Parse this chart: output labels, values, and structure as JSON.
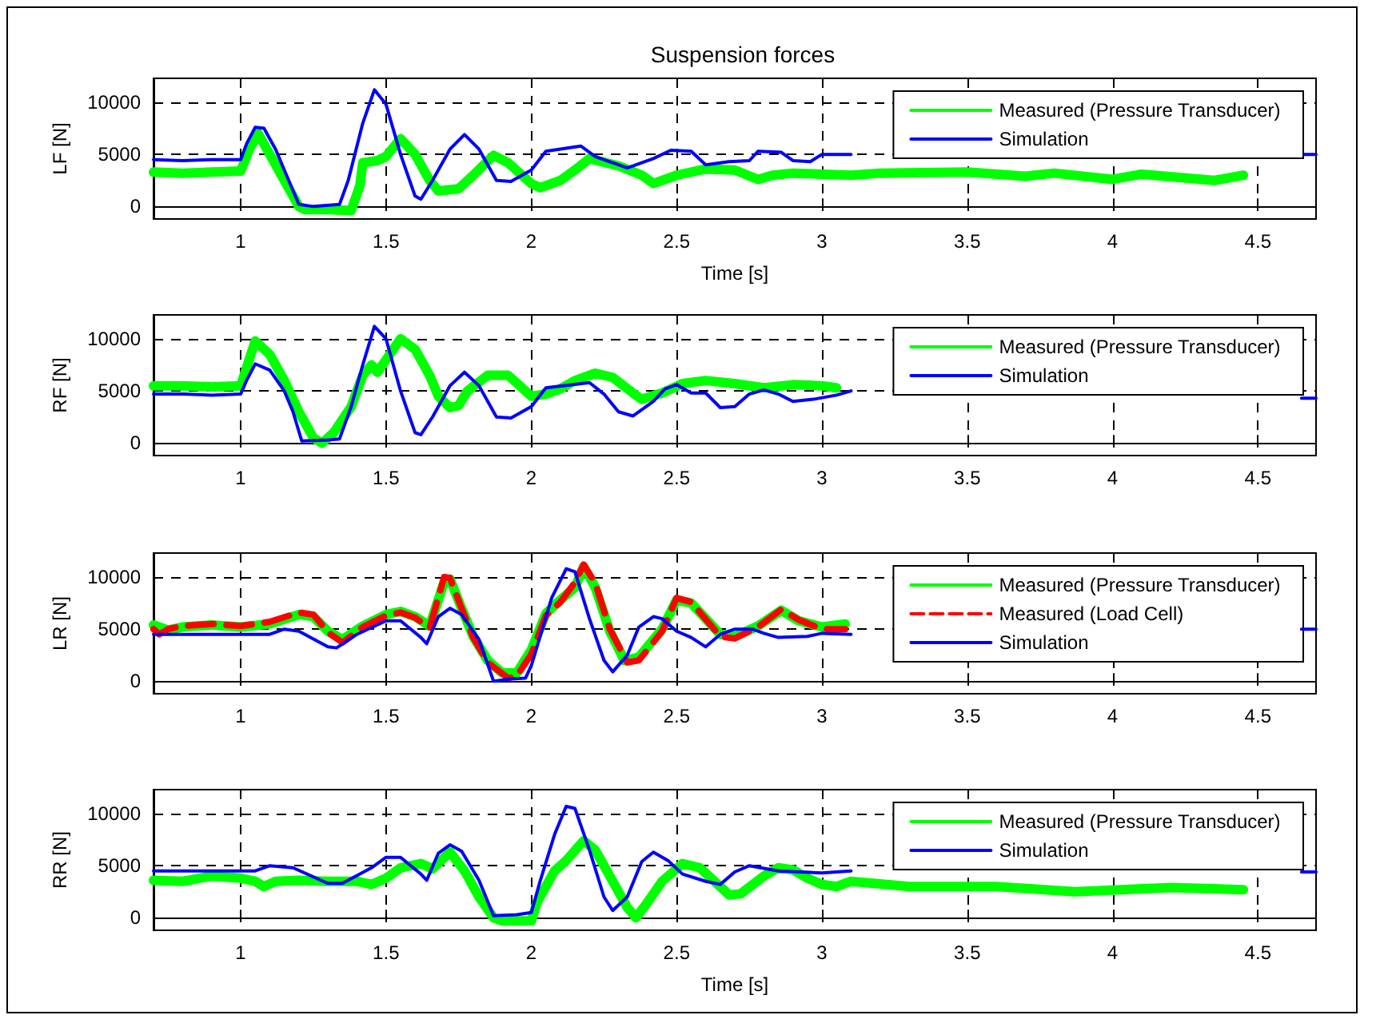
{
  "chart_data": [
    {
      "type": "line",
      "title": "Suspension forces",
      "xlabel": "Time [s]",
      "ylabel": "LF [N]",
      "xlim": [
        0.7,
        4.7
      ],
      "xticks": [
        1,
        1.5,
        2,
        2.5,
        3,
        3.5,
        4,
        4.5
      ],
      "ylim": [
        -1200,
        12300
      ],
      "yticks": [
        0,
        5000,
        10000
      ],
      "grid": true,
      "legend": "top right",
      "marker": "none",
      "series": [
        {
          "name": "Measured (Pressure Transducer)",
          "color": "#00ff00",
          "line_style": "solid",
          "x": [
            0.7,
            0.8,
            0.9,
            1.0,
            1.03,
            1.06,
            1.1,
            1.15,
            1.2,
            1.22,
            1.3,
            1.38,
            1.41,
            1.42,
            1.47,
            1.5,
            1.55,
            1.6,
            1.65,
            1.68,
            1.75,
            1.8,
            1.87,
            1.92,
            2.0,
            2.03,
            2.1,
            2.15,
            2.2,
            2.3,
            2.38,
            2.42,
            2.5,
            2.6,
            2.7,
            2.78,
            2.83,
            2.9,
            3.0,
            3.1,
            3.2,
            3.5,
            3.7,
            3.8,
            4.0,
            4.1,
            4.35,
            4.45
          ],
          "values": [
            3300,
            3200,
            3300,
            3400,
            5500,
            7000,
            5000,
            2500,
            0,
            -300,
            -300,
            -400,
            2000,
            4200,
            4400,
            4800,
            6500,
            5000,
            2500,
            1500,
            1700,
            3000,
            4900,
            4200,
            2200,
            1800,
            2500,
            3500,
            4600,
            3900,
            3000,
            2200,
            3000,
            3600,
            3500,
            2600,
            3000,
            3200,
            3100,
            3000,
            3200,
            3300,
            2900,
            3200,
            2600,
            3100,
            2500,
            3000
          ]
        },
        {
          "name": "Simulation",
          "color": "#0000ff",
          "line_style": "solid",
          "x": [
            0.7,
            0.8,
            0.9,
            1.0,
            1.02,
            1.05,
            1.08,
            1.12,
            1.2,
            1.25,
            1.34,
            1.37,
            1.42,
            1.46,
            1.5,
            1.55,
            1.6,
            1.62,
            1.66,
            1.72,
            1.77,
            1.82,
            1.88,
            1.93,
            2.0,
            2.05,
            2.17,
            2.22,
            2.3,
            2.33,
            2.42,
            2.48,
            2.55,
            2.6,
            2.68,
            2.75,
            2.78,
            2.86,
            2.9,
            2.96,
            3.0,
            3.05,
            3.1,
            3.11,
            4.65,
            4.7
          ],
          "values": [
            4500,
            4400,
            4500,
            4500,
            6000,
            7600,
            7500,
            5500,
            200,
            0,
            200,
            2500,
            8000,
            11200,
            9800,
            5000,
            1000,
            700,
            2500,
            5500,
            6900,
            5500,
            2500,
            2400,
            3500,
            5300,
            5800,
            4800,
            4000,
            3700,
            4600,
            5400,
            5300,
            4000,
            4300,
            4400,
            5300,
            5200,
            4400,
            4300,
            5000,
            5000,
            5000,
            null,
            5000,
            5000
          ]
        }
      ]
    },
    {
      "type": "line",
      "ylabel": "RF [N]",
      "xlim": [
        0.7,
        4.7
      ],
      "xticks": [
        1,
        1.5,
        2,
        2.5,
        3,
        3.5,
        4,
        4.5
      ],
      "ylim": [
        -1200,
        12300
      ],
      "yticks": [
        0,
        5000,
        10000
      ],
      "grid": true,
      "legend": "top right",
      "marker": "none",
      "series": [
        {
          "name": "Measured (Pressure Transducer)",
          "color": "#00ff00",
          "line_style": "solid",
          "x": [
            0.7,
            0.8,
            0.9,
            1.0,
            1.05,
            1.1,
            1.15,
            1.2,
            1.25,
            1.28,
            1.32,
            1.38,
            1.42,
            1.45,
            1.47,
            1.5,
            1.55,
            1.6,
            1.65,
            1.68,
            1.72,
            1.75,
            1.78,
            1.85,
            1.92,
            1.96,
            2.0,
            2.05,
            2.1,
            2.15,
            2.22,
            2.28,
            2.35,
            2.38,
            2.45,
            2.52,
            2.6,
            2.7,
            2.8,
            2.9,
            3.0,
            3.05
          ],
          "values": [
            5500,
            5500,
            5400,
            5500,
            9800,
            8500,
            6000,
            3000,
            500,
            0,
            1000,
            3500,
            6500,
            7500,
            6800,
            8000,
            10000,
            9000,
            6500,
            4500,
            3400,
            3600,
            5000,
            6500,
            6500,
            5500,
            4500,
            4700,
            5200,
            6000,
            6700,
            6300,
            4800,
            4200,
            4800,
            5700,
            6000,
            5700,
            5300,
            5600,
            5500,
            5300
          ]
        },
        {
          "name": "Simulation",
          "color": "#0000ff",
          "line_style": "solid",
          "x": [
            0.7,
            0.8,
            0.9,
            1.0,
            1.02,
            1.05,
            1.1,
            1.15,
            1.18,
            1.21,
            1.3,
            1.34,
            1.38,
            1.42,
            1.46,
            1.5,
            1.55,
            1.6,
            1.62,
            1.66,
            1.72,
            1.77,
            1.82,
            1.88,
            1.93,
            2.0,
            2.05,
            2.2,
            2.25,
            2.3,
            2.35,
            2.42,
            2.46,
            2.5,
            2.55,
            2.6,
            2.65,
            2.7,
            2.75,
            2.8,
            2.85,
            2.9,
            2.97,
            3.05,
            3.1,
            3.11,
            4.65,
            4.7
          ],
          "values": [
            4700,
            4700,
            4600,
            4700,
            6000,
            7600,
            7000,
            5000,
            3000,
            200,
            300,
            400,
            3500,
            7500,
            11200,
            10000,
            5000,
            1000,
            800,
            2500,
            5500,
            6800,
            5500,
            2500,
            2400,
            3500,
            5300,
            5800,
            4700,
            3000,
            2600,
            4000,
            5200,
            5600,
            4800,
            4800,
            3400,
            3500,
            4700,
            5100,
            4700,
            4000,
            4200,
            4600,
            5000,
            null,
            4300,
            4300
          ]
        }
      ]
    },
    {
      "type": "line",
      "ylabel": "LR [N]",
      "xlim": [
        0.7,
        4.7
      ],
      "xticks": [
        1,
        1.5,
        2,
        2.5,
        3,
        3.5,
        4,
        4.5
      ],
      "ylim": [
        -1200,
        12300
      ],
      "yticks": [
        0,
        5000,
        10000
      ],
      "grid": true,
      "legend": "top right",
      "marker": "none",
      "series": [
        {
          "name": "Measured (Pressure Transducer)",
          "color": "#00ff00",
          "line_style": "solid",
          "x": [
            0.7,
            0.75,
            0.8,
            0.9,
            1.0,
            1.1,
            1.2,
            1.25,
            1.3,
            1.35,
            1.42,
            1.5,
            1.55,
            1.6,
            1.65,
            1.7,
            1.72,
            1.76,
            1.8,
            1.85,
            1.9,
            1.95,
            2.0,
            2.05,
            2.1,
            2.15,
            2.18,
            2.22,
            2.27,
            2.32,
            2.37,
            2.45,
            2.5,
            2.55,
            2.65,
            2.7,
            2.78,
            2.86,
            2.92,
            3.0,
            3.08
          ],
          "values": [
            5400,
            4900,
            5200,
            5400,
            5200,
            5500,
            6400,
            6200,
            4800,
            4000,
            5300,
            6400,
            6700,
            6200,
            5300,
            9500,
            9800,
            7000,
            4300,
            2000,
            800,
            800,
            3000,
            6500,
            7800,
            9000,
            11000,
            9000,
            4800,
            2000,
            2300,
            5000,
            7800,
            7500,
            4500,
            4300,
            5300,
            6800,
            5800,
            5200,
            5500
          ]
        },
        {
          "name": "Measured (Load Cell)",
          "color": "#ff0000",
          "line_style": "dashed",
          "x": [
            0.7,
            0.72,
            0.75,
            0.8,
            0.9,
            1.0,
            1.1,
            1.2,
            1.25,
            1.3,
            1.35,
            1.42,
            1.5,
            1.55,
            1.6,
            1.65,
            1.7,
            1.72,
            1.76,
            1.8,
            1.85,
            1.92,
            1.95,
            2.0,
            2.05,
            2.1,
            2.15,
            2.18,
            2.22,
            2.27,
            2.33,
            2.37,
            2.45,
            2.5,
            2.55,
            2.65,
            2.7,
            2.78,
            2.86,
            2.92,
            3.0,
            3.08
          ],
          "values": [
            5000,
            4500,
            5000,
            5300,
            5500,
            5300,
            5700,
            6600,
            6400,
            4700,
            3700,
            5200,
            6300,
            6600,
            6100,
            5100,
            10000,
            9900,
            7000,
            4200,
            1800,
            300,
            500,
            2600,
            6300,
            7600,
            9500,
            11200,
            9400,
            5000,
            1800,
            2000,
            4800,
            8000,
            7600,
            4300,
            4100,
            5200,
            6900,
            5900,
            5000,
            5000
          ]
        },
        {
          "name": "Simulation",
          "color": "#0000ff",
          "line_style": "solid",
          "x": [
            0.7,
            0.9,
            1.1,
            1.15,
            1.2,
            1.3,
            1.33,
            1.4,
            1.5,
            1.55,
            1.62,
            1.64,
            1.68,
            1.72,
            1.76,
            1.82,
            1.87,
            1.92,
            1.98,
            2.0,
            2.07,
            2.12,
            2.15,
            2.2,
            2.25,
            2.28,
            2.33,
            2.37,
            2.42,
            2.45,
            2.5,
            2.55,
            2.6,
            2.65,
            2.7,
            2.76,
            2.8,
            2.85,
            2.95,
            3.0,
            3.1,
            3.11,
            4.65,
            4.7
          ],
          "values": [
            4500,
            4500,
            4500,
            5000,
            4800,
            3300,
            3200,
            4500,
            5800,
            5800,
            4200,
            3600,
            6200,
            7000,
            6400,
            4000,
            0,
            200,
            300,
            1500,
            8000,
            10800,
            10500,
            6000,
            2000,
            900,
            2500,
            5200,
            6200,
            6000,
            4800,
            4200,
            3300,
            4500,
            5000,
            5000,
            4600,
            4200,
            4300,
            4600,
            4500,
            null,
            5000,
            5000
          ]
        }
      ]
    },
    {
      "type": "line",
      "xlabel": "Time [s]",
      "ylabel": "RR [N]",
      "xlim": [
        0.7,
        4.7
      ],
      "xticks": [
        1,
        1.5,
        2,
        2.5,
        3,
        3.5,
        4,
        4.5
      ],
      "ylim": [
        -1200,
        12300
      ],
      "yticks": [
        0,
        5000,
        10000
      ],
      "grid": true,
      "legend": "top right",
      "marker": "none",
      "series": [
        {
          "name": "Measured (Pressure Transducer)",
          "color": "#00ff00",
          "line_style": "solid",
          "x": [
            0.7,
            0.8,
            0.9,
            1.0,
            1.05,
            1.08,
            1.12,
            1.2,
            1.3,
            1.4,
            1.45,
            1.5,
            1.55,
            1.62,
            1.66,
            1.72,
            1.77,
            1.82,
            1.87,
            1.9,
            2.0,
            2.02,
            2.08,
            2.12,
            2.18,
            2.22,
            2.28,
            2.33,
            2.36,
            2.4,
            2.45,
            2.52,
            2.58,
            2.63,
            2.68,
            2.72,
            2.8,
            2.85,
            2.9,
            2.95,
            3.0,
            3.05,
            3.1,
            3.3,
            3.6,
            3.87,
            4.2,
            4.45
          ],
          "values": [
            3600,
            3500,
            4000,
            3800,
            3500,
            3000,
            3500,
            3600,
            3500,
            3500,
            3200,
            3800,
            4800,
            5200,
            4700,
            6300,
            4500,
            2000,
            0,
            -300,
            -300,
            1500,
            4500,
            5500,
            7400,
            6500,
            3500,
            1000,
            0,
            1500,
            3500,
            5200,
            4800,
            3500,
            2200,
            2300,
            4000,
            4800,
            4600,
            3800,
            3200,
            3000,
            3500,
            3000,
            3000,
            2500,
            2900,
            2700
          ]
        },
        {
          "name": "Simulation",
          "color": "#0000ff",
          "line_style": "solid",
          "x": [
            0.7,
            1.05,
            1.1,
            1.18,
            1.3,
            1.35,
            1.45,
            1.5,
            1.55,
            1.62,
            1.64,
            1.68,
            1.72,
            1.76,
            1.82,
            1.87,
            1.95,
            2.0,
            2.03,
            2.08,
            2.12,
            2.15,
            2.2,
            2.25,
            2.28,
            2.33,
            2.38,
            2.42,
            2.47,
            2.52,
            2.6,
            2.65,
            2.7,
            2.75,
            2.85,
            3.0,
            3.1,
            3.11,
            4.65,
            4.7
          ],
          "values": [
            4500,
            4500,
            5000,
            4800,
            3300,
            3300,
            4800,
            5800,
            5800,
            4200,
            3600,
            6200,
            7000,
            6400,
            3600,
            200,
            300,
            500,
            3500,
            8000,
            10700,
            10500,
            6500,
            2000,
            700,
            2000,
            5400,
            6300,
            5500,
            4200,
            3500,
            3200,
            4400,
            5000,
            4500,
            4300,
            4500,
            null,
            4400,
            4400
          ]
        }
      ]
    }
  ]
}
